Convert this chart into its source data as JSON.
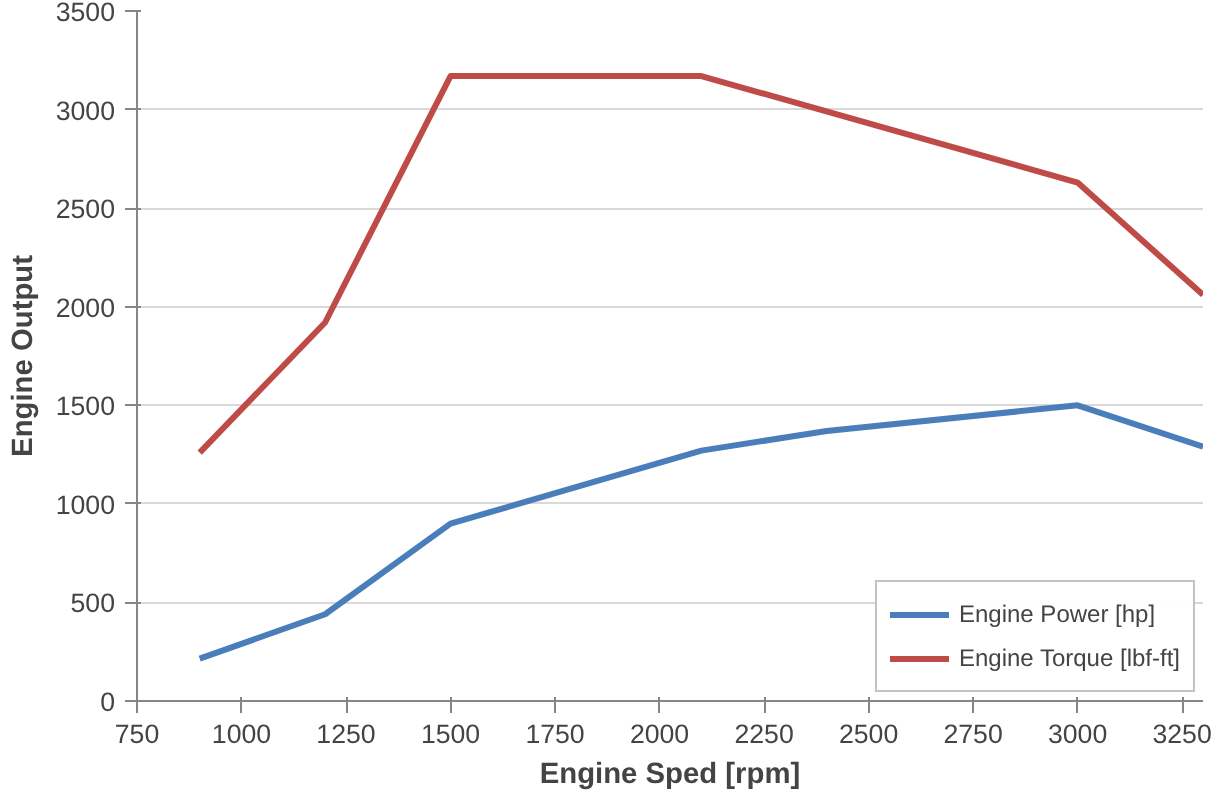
{
  "chart_data": {
    "type": "line",
    "xlabel": "Engine Sped [rpm]",
    "ylabel": "Engine Output",
    "xlim": [
      750,
      3300
    ],
    "xticks": [
      750,
      1000,
      1250,
      1500,
      1750,
      2000,
      2250,
      2500,
      2750,
      3000,
      3250
    ],
    "ylim": [
      0,
      3500
    ],
    "yticks": [
      0,
      500,
      1000,
      1500,
      2000,
      2500,
      3000,
      3500
    ],
    "grid": "y",
    "legend": "bottom right",
    "marker": "none",
    "line_style": "solid",
    "series": [
      {
        "name": "Engine Power [hp]",
        "color": "#4a7ebb",
        "x": [
          900,
          1200,
          1500,
          2100,
          2400,
          3000,
          3300
        ],
        "values": [
          215,
          440,
          900,
          1270,
          1370,
          1500,
          1290
        ]
      },
      {
        "name": "Engine Torque [lbf-ft]",
        "color": "#be4b48",
        "x": [
          900,
          1200,
          1500,
          2100,
          3000,
          3300
        ],
        "values": [
          1260,
          1920,
          3170,
          3170,
          2630,
          2060
        ]
      }
    ]
  }
}
